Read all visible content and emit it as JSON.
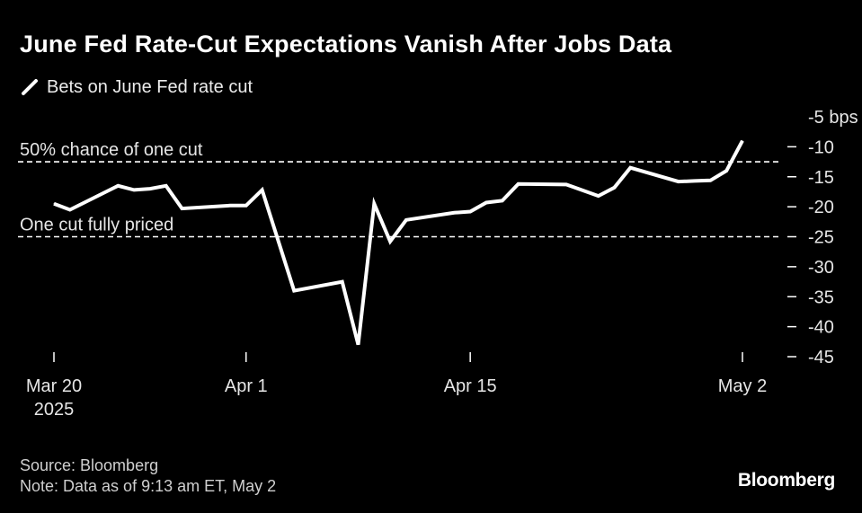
{
  "title": "June Fed Rate-Cut Expectations Vanish After Jobs Data",
  "legend": {
    "label": "Bets on June Fed rate cut"
  },
  "source": "Source: Bloomberg",
  "note": "Note: Data as of 9:13 am ET, May 2",
  "brand": "Bloomberg",
  "colors": {
    "background": "#000000",
    "line": "#ffffff",
    "reference": "#ffffff",
    "text": "#e6e6e6"
  },
  "chart_data": {
    "type": "line",
    "ylabel_unit": "bps",
    "ylim": [
      -45,
      -5
    ],
    "yticks": [
      {
        "value": -5,
        "label": "-5 bps"
      },
      {
        "value": -10,
        "label": "-10"
      },
      {
        "value": -15,
        "label": "-15"
      },
      {
        "value": -20,
        "label": "-20"
      },
      {
        "value": -25,
        "label": "-25"
      },
      {
        "value": -30,
        "label": "-30"
      },
      {
        "value": -35,
        "label": "-35"
      },
      {
        "value": -40,
        "label": "-40"
      },
      {
        "value": -45,
        "label": "-45"
      }
    ],
    "xlim": [
      "2025-03-20",
      "2025-05-02"
    ],
    "xticks": [
      {
        "date": "2025-03-20",
        "label": "Mar 20",
        "sublabel": "2025"
      },
      {
        "date": "2025-04-01",
        "label": "Apr 1"
      },
      {
        "date": "2025-04-15",
        "label": "Apr 15"
      },
      {
        "date": "2025-05-02",
        "label": "May 2"
      }
    ],
    "grid": false,
    "axis_side": "right",
    "legend_position": "top-left",
    "reference_lines": [
      {
        "value": -12.5,
        "label": "50% chance of one cut",
        "style": "dashed"
      },
      {
        "value": -25,
        "label": "One cut fully priced",
        "style": "dashed"
      }
    ],
    "series": [
      {
        "name": "Bets on June Fed rate cut",
        "points": [
          {
            "x": "2025-03-20",
            "y": -19.5
          },
          {
            "x": "2025-03-21",
            "y": -20.5
          },
          {
            "x": "2025-03-24",
            "y": -16.5
          },
          {
            "x": "2025-03-25",
            "y": -17.2
          },
          {
            "x": "2025-03-26",
            "y": -17.0
          },
          {
            "x": "2025-03-27",
            "y": -16.5
          },
          {
            "x": "2025-03-28",
            "y": -20.3
          },
          {
            "x": "2025-03-31",
            "y": -19.8
          },
          {
            "x": "2025-04-01",
            "y": -19.8
          },
          {
            "x": "2025-04-02",
            "y": -17.2
          },
          {
            "x": "2025-04-04",
            "y": -34.0
          },
          {
            "x": "2025-04-07",
            "y": -32.5
          },
          {
            "x": "2025-04-08",
            "y": -43.0
          },
          {
            "x": "2025-04-09",
            "y": -19.5
          },
          {
            "x": "2025-04-10",
            "y": -25.8
          },
          {
            "x": "2025-04-11",
            "y": -22.2
          },
          {
            "x": "2025-04-14",
            "y": -21.0
          },
          {
            "x": "2025-04-15",
            "y": -20.8
          },
          {
            "x": "2025-04-16",
            "y": -19.3
          },
          {
            "x": "2025-04-17",
            "y": -19.0
          },
          {
            "x": "2025-04-18",
            "y": -16.2
          },
          {
            "x": "2025-04-21",
            "y": -16.3
          },
          {
            "x": "2025-04-23",
            "y": -18.2
          },
          {
            "x": "2025-04-24",
            "y": -16.8
          },
          {
            "x": "2025-04-25",
            "y": -13.5
          },
          {
            "x": "2025-04-28",
            "y": -15.8
          },
          {
            "x": "2025-04-29",
            "y": -15.7
          },
          {
            "x": "2025-04-30",
            "y": -15.6
          },
          {
            "x": "2025-05-01",
            "y": -14.0
          },
          {
            "x": "2025-05-02",
            "y": -9.0
          }
        ]
      }
    ]
  }
}
